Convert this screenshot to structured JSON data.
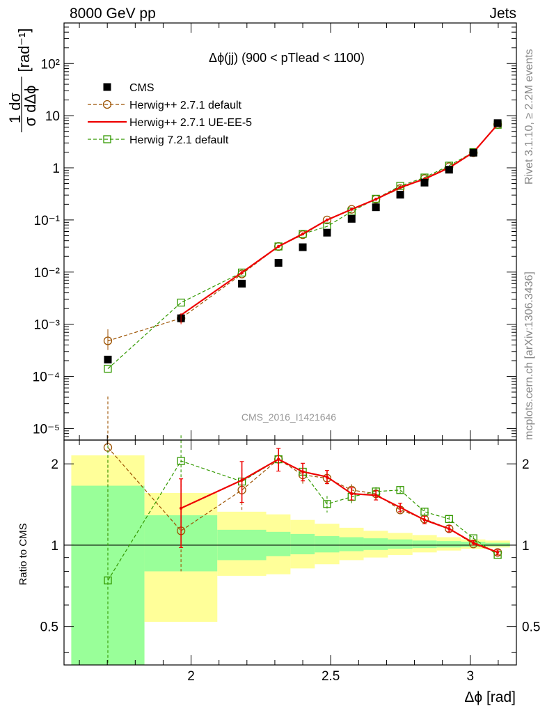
{
  "header": {
    "left": "8000 GeV pp",
    "right": "Jets"
  },
  "side": {
    "rivet": "Rivet 3.1.10, ≥ 2.2M events",
    "mcplots": "mcplots.cern.ch [arXiv:1306.3436]"
  },
  "chart_data": [
    {
      "type": "scatter",
      "title": "Δϕ(jj) (900 < pTlead <  1100)",
      "watermark": "CMS_2016_I1421646",
      "ylabel_main": "1 dσ",
      "ylabel_denominator": "σ dΔϕ",
      "ylabel_unit": "[rad⁻¹]",
      "yscale": "log",
      "xlim": [
        1.545,
        3.165
      ],
      "ylim": [
        6e-06,
        600
      ],
      "ytick_labels": [
        "10⁻⁵",
        "10⁻⁴",
        "10⁻³",
        "10⁻²",
        "10⁻¹",
        "1",
        "10",
        "10²"
      ],
      "legend_position": "top-left",
      "x": [
        1.702,
        1.964,
        2.182,
        2.313,
        2.4,
        2.487,
        2.575,
        2.662,
        2.749,
        2.836,
        2.924,
        3.011,
        3.098
      ],
      "series": [
        {
          "name": "CMS",
          "color": "#000000",
          "style": "marker-square",
          "values": [
            0.00021,
            0.0013,
            0.006,
            0.015,
            0.03,
            0.057,
            0.105,
            0.175,
            0.305,
            0.52,
            0.92,
            1.95,
            7.2
          ]
        },
        {
          "name": "Herwig++ 2.7.1 default",
          "color": "#9c5200",
          "style": "circle-dashed",
          "values": [
            0.00048,
            0.0013,
            0.0092,
            0.031,
            0.052,
            0.1,
            0.16,
            0.25,
            0.4,
            0.62,
            1.05,
            1.95,
            6.8
          ]
        },
        {
          "name": "Herwig++ 2.7.1 UE-EE-5",
          "color": "#ee0000",
          "style": "solid",
          "values": [
            null,
            0.0015,
            0.0098,
            0.031,
            0.054,
            0.1,
            0.16,
            0.25,
            0.42,
            0.61,
            1.0,
            1.98,
            6.8
          ]
        },
        {
          "name": "Herwig 7.2.1 default",
          "color": "#339900",
          "style": "square-dashed",
          "values": [
            0.00014,
            0.0026,
            0.0098,
            0.031,
            0.054,
            0.075,
            0.145,
            0.255,
            0.45,
            0.65,
            1.1,
            2.0,
            6.7
          ]
        }
      ]
    },
    {
      "type": "scatter",
      "ylabel": "Ratio to CMS",
      "yscale": "log",
      "xlim": [
        1.545,
        3.165
      ],
      "ylim": [
        0.36,
        2.45
      ],
      "xlabel": "Δϕ [rad]",
      "xtick_labels": [
        "2",
        "2.5",
        "3"
      ],
      "ytick_labels": [
        "0.5",
        "1",
        "2"
      ],
      "reference_line": 1,
      "x": [
        1.702,
        1.964,
        2.182,
        2.313,
        2.4,
        2.487,
        2.575,
        2.662,
        2.749,
        2.836,
        2.924,
        3.011,
        3.098
      ],
      "uncertainty_bands": {
        "colors": [
          "#99ff99",
          "#ffff99"
        ],
        "bin_edges": [
          1.571,
          1.833,
          2.094,
          2.269,
          2.356,
          2.443,
          2.531,
          2.618,
          2.705,
          2.793,
          2.88,
          2.967,
          3.054,
          3.142
        ],
        "inner_low": [
          0.36,
          0.8,
          0.88,
          0.91,
          0.925,
          0.94,
          0.95,
          0.96,
          0.97,
          0.975,
          0.98,
          0.985,
          0.99
        ],
        "inner_high": [
          1.66,
          1.29,
          1.14,
          1.12,
          1.1,
          1.08,
          1.07,
          1.06,
          1.05,
          1.04,
          1.035,
          1.03,
          1.02
        ],
        "outer_low": [
          0.36,
          0.52,
          0.77,
          0.78,
          0.82,
          0.85,
          0.88,
          0.9,
          0.92,
          0.94,
          0.955,
          0.97,
          0.98
        ],
        "outer_high": [
          2.15,
          1.56,
          1.33,
          1.3,
          1.24,
          1.2,
          1.16,
          1.13,
          1.11,
          1.09,
          1.07,
          1.05,
          1.04
        ]
      },
      "series": [
        {
          "name": "Herwig++ 2.7.1 default",
          "color": "#9c5200",
          "style": "circle-dashed",
          "values": [
            2.3,
            1.13,
            1.6,
            2.08,
            1.82,
            1.77,
            1.6,
            1.55,
            1.35,
            1.25,
            1.15,
            1.01,
            0.94
          ],
          "err_low": [
            1.25,
            0.33,
            0.25,
            0.2,
            0.14,
            0.1,
            0.08,
            0.06,
            0.05,
            0.04,
            0.03,
            0.02,
            0.02
          ],
          "err_high": [
            1.25,
            0.33,
            0.25,
            0.2,
            0.14,
            0.1,
            0.08,
            0.06,
            0.05,
            0.04,
            0.03,
            0.02,
            0.02
          ]
        },
        {
          "name": "Herwig++ 2.7.1 UE-EE-5",
          "color": "#ee0000",
          "style": "solid",
          "values": [
            null,
            1.37,
            1.74,
            2.08,
            1.87,
            1.79,
            1.55,
            1.53,
            1.38,
            1.24,
            1.15,
            1.02,
            0.94
          ],
          "err_low": [
            null,
            0.39,
            0.3,
            0.2,
            0.14,
            0.1,
            0.08,
            0.06,
            0.05,
            0.04,
            0.03,
            0.02,
            0.02
          ],
          "err_high": [
            null,
            0.39,
            0.3,
            0.2,
            0.14,
            0.1,
            0.08,
            0.06,
            0.05,
            0.04,
            0.03,
            0.02,
            0.02
          ]
        },
        {
          "name": "Herwig 7.2.1 default",
          "color": "#339900",
          "style": "square-dashed",
          "values": [
            0.74,
            2.05,
            1.72,
            2.08,
            1.87,
            1.42,
            1.51,
            1.58,
            1.6,
            1.33,
            1.25,
            1.06,
            0.92
          ],
          "err_low": [
            0.4,
            0.5,
            0.2,
            0.2,
            0.14,
            0.1,
            0.08,
            0.06,
            0.05,
            0.04,
            0.03,
            0.02,
            0.02
          ],
          "err_high": [
            1.6,
            0.5,
            0.2,
            0.2,
            0.14,
            0.1,
            0.08,
            0.06,
            0.05,
            0.04,
            0.03,
            0.02,
            0.02
          ]
        }
      ]
    }
  ]
}
